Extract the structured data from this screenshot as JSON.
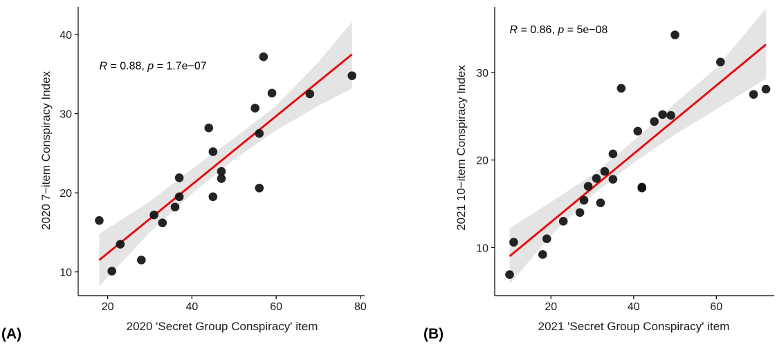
{
  "colors": {
    "point": "#111111",
    "regression_line": "#e50f0f",
    "confidence_band": "#e4e4e4",
    "axis": "#000000",
    "background": "#ffffff"
  },
  "chart_data": [
    {
      "type": "scatter",
      "panel_label": "(A)",
      "xlabel": "2020 'Secret Group Conspiracy' item",
      "ylabel": "2020 7−item Conspiracy Index",
      "xlim": [
        13,
        81
      ],
      "ylim": [
        7,
        43.5
      ],
      "xticks": [
        20,
        40,
        60,
        80
      ],
      "yticks": [
        10,
        20,
        30,
        40
      ],
      "grid": false,
      "annotation": {
        "r_label": "R",
        "r_value": " = 0.88, ",
        "p_label": "p",
        "p_value": " = 1.7e−07",
        "position_data": [
          18,
          35.6
        ]
      },
      "regression": {
        "x_range": [
          18,
          78
        ],
        "y_range": [
          11.5,
          37.5
        ]
      },
      "confidence_band": {
        "x": [
          18,
          30,
          40,
          50,
          60,
          70,
          78
        ],
        "lower": [
          8.2,
          15.0,
          19.9,
          24.2,
          27.9,
          31.0,
          33.2
        ],
        "upper": [
          14.8,
          18.9,
          23.0,
          26.9,
          31.0,
          36.5,
          41.6
        ]
      },
      "points": [
        {
          "x": 18,
          "y": 16.5
        },
        {
          "x": 21,
          "y": 10.1
        },
        {
          "x": 23,
          "y": 13.5
        },
        {
          "x": 28,
          "y": 11.5
        },
        {
          "x": 31,
          "y": 17.2
        },
        {
          "x": 33,
          "y": 16.2
        },
        {
          "x": 36,
          "y": 18.2
        },
        {
          "x": 37,
          "y": 21.9
        },
        {
          "x": 37,
          "y": 19.5
        },
        {
          "x": 44,
          "y": 28.2
        },
        {
          "x": 45,
          "y": 25.2
        },
        {
          "x": 45,
          "y": 19.5
        },
        {
          "x": 47,
          "y": 22.7
        },
        {
          "x": 47,
          "y": 21.8
        },
        {
          "x": 55,
          "y": 30.7
        },
        {
          "x": 56,
          "y": 27.5
        },
        {
          "x": 56,
          "y": 20.6
        },
        {
          "x": 57,
          "y": 37.2
        },
        {
          "x": 59,
          "y": 32.6
        },
        {
          "x": 68,
          "y": 32.5
        },
        {
          "x": 78,
          "y": 34.8
        }
      ]
    },
    {
      "type": "scatter",
      "panel_label": "(B)",
      "xlabel": "2021 'Secret Group Conspiracy' item",
      "ylabel": "2021 10−item Conspiracy Index",
      "xlim": [
        6.4,
        74
      ],
      "ylim": [
        4.5,
        37.5
      ],
      "xticks": [
        20,
        40,
        60
      ],
      "yticks": [
        10,
        20,
        30
      ],
      "grid": false,
      "annotation": {
        "r_label": "R",
        "r_value": " = 0.86, ",
        "p_label": "p",
        "p_value": " = 5e−08",
        "position_data": [
          10,
          34.5
        ]
      },
      "regression": {
        "x_range": [
          10,
          72
        ],
        "y_range": [
          9.0,
          33.2
        ]
      },
      "confidence_band": {
        "x": [
          10,
          20,
          30,
          40,
          50,
          60,
          72
        ],
        "lower": [
          5.8,
          11.4,
          16.0,
          19.7,
          22.9,
          25.8,
          29.3
        ],
        "upper": [
          12.2,
          15.2,
          18.3,
          22.2,
          26.5,
          30.5,
          37.3
        ]
      },
      "points": [
        {
          "x": 10,
          "y": 6.9
        },
        {
          "x": 11,
          "y": 10.6
        },
        {
          "x": 18,
          "y": 9.2
        },
        {
          "x": 19,
          "y": 11.0
        },
        {
          "x": 23,
          "y": 13.0
        },
        {
          "x": 27,
          "y": 14.0
        },
        {
          "x": 28,
          "y": 15.4
        },
        {
          "x": 29,
          "y": 17.0
        },
        {
          "x": 31,
          "y": 17.9
        },
        {
          "x": 32,
          "y": 15.1
        },
        {
          "x": 33,
          "y": 18.7
        },
        {
          "x": 35,
          "y": 20.7
        },
        {
          "x": 35,
          "y": 17.8
        },
        {
          "x": 37,
          "y": 28.2
        },
        {
          "x": 41,
          "y": 23.3
        },
        {
          "x": 42,
          "y": 16.9
        },
        {
          "x": 42,
          "y": 16.8
        },
        {
          "x": 45,
          "y": 24.4
        },
        {
          "x": 47,
          "y": 25.2
        },
        {
          "x": 49,
          "y": 25.1
        },
        {
          "x": 50,
          "y": 34.3
        },
        {
          "x": 61,
          "y": 31.2
        },
        {
          "x": 69,
          "y": 27.5
        },
        {
          "x": 72,
          "y": 28.1
        }
      ]
    }
  ]
}
